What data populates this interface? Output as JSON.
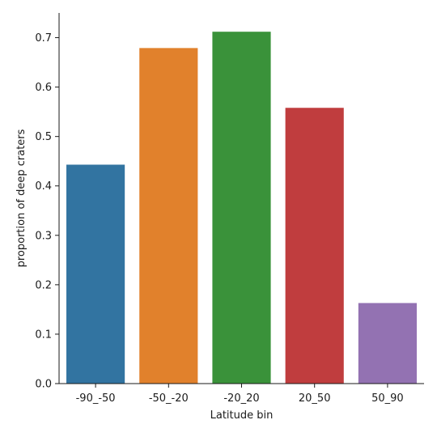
{
  "chart_data": {
    "type": "bar",
    "title": "",
    "xlabel": "Latitude bin",
    "ylabel": "proportion of deep craters",
    "categories": [
      "-90_-50",
      "-50_-20",
      "-20_20",
      "20_50",
      "50_90"
    ],
    "values": [
      0.443,
      0.679,
      0.712,
      0.558,
      0.163
    ],
    "colors": [
      "#3274a1",
      "#e1812c",
      "#3a923a",
      "#c03d3e",
      "#9372b2"
    ],
    "ylim": [
      0,
      0.75
    ],
    "yticks": [
      0.0,
      0.1,
      0.2,
      0.3,
      0.4,
      0.5,
      0.6,
      0.7
    ],
    "ytick_labels": [
      "0.0",
      "0.1",
      "0.2",
      "0.3",
      "0.4",
      "0.5",
      "0.6",
      "0.7"
    ],
    "grid": false,
    "legend": "none"
  }
}
